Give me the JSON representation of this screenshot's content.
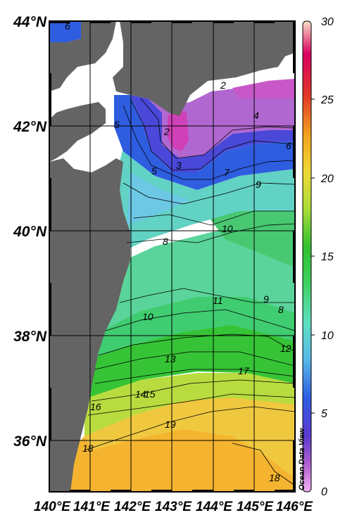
{
  "map": {
    "latitude_labels": [
      "44°N",
      "42°N",
      "40°N",
      "38°N",
      "36°N"
    ],
    "longitude_labels": [
      "140°E",
      "141°E",
      "142°E",
      "143°E",
      "144°E",
      "145°E",
      "146°E"
    ],
    "contour_labels": [
      "6",
      "2",
      "5",
      "2",
      "4",
      "6",
      "3",
      "5",
      "7",
      "9",
      "10",
      "8",
      "10",
      "11",
      "9",
      "8",
      "12",
      "13",
      "14",
      "15",
      "17",
      "16",
      "19",
      "18",
      "18"
    ],
    "colorbar_ticks": [
      "30",
      "25",
      "20",
      "15",
      "10",
      "5",
      "0"
    ],
    "credit": "Ocean Data View"
  }
}
